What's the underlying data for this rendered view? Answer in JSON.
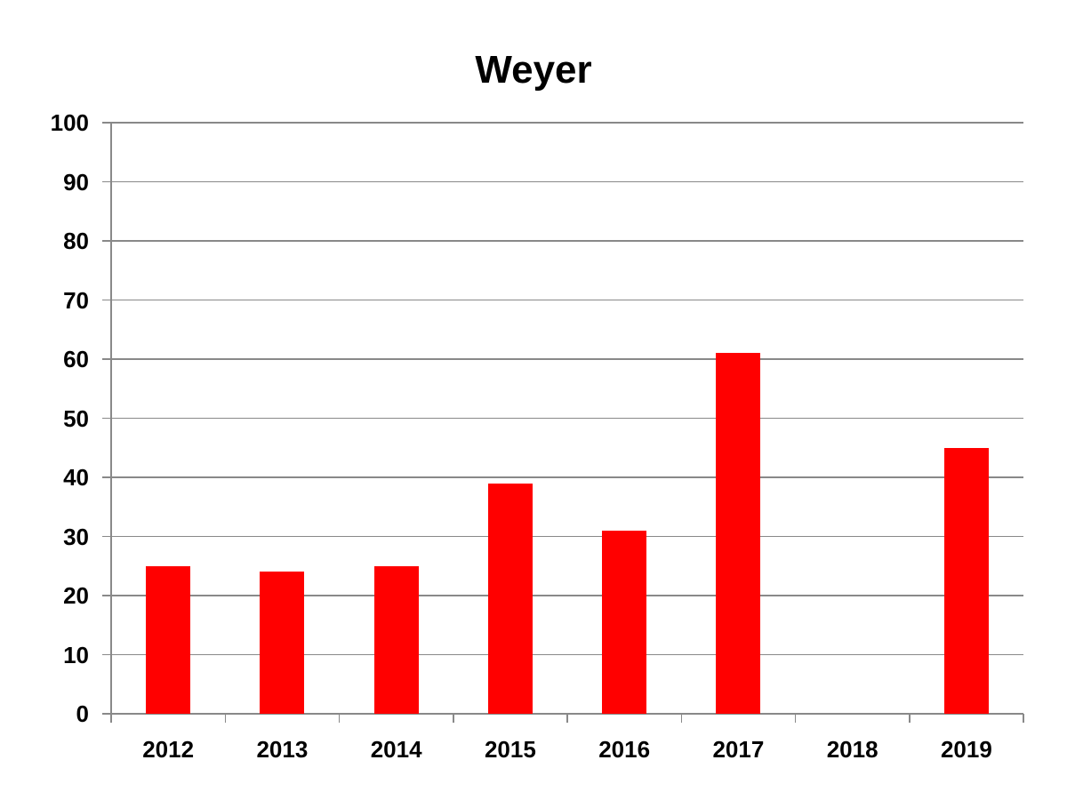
{
  "chart_data": {
    "type": "bar",
    "title": "Weyer",
    "categories": [
      "2012",
      "2013",
      "2014",
      "2015",
      "2016",
      "2017",
      "2018",
      "2019"
    ],
    "values": [
      25,
      24,
      25,
      39,
      31,
      61,
      0,
      45
    ],
    "xlabel": "",
    "ylabel": "",
    "ylim": [
      0,
      100
    ],
    "ytick_step": 10,
    "grid": true,
    "legend": null,
    "bar_color": "#FF0000",
    "axis_color": "#898989",
    "text_color": "#000000",
    "background_color": "#FFFFFF"
  }
}
